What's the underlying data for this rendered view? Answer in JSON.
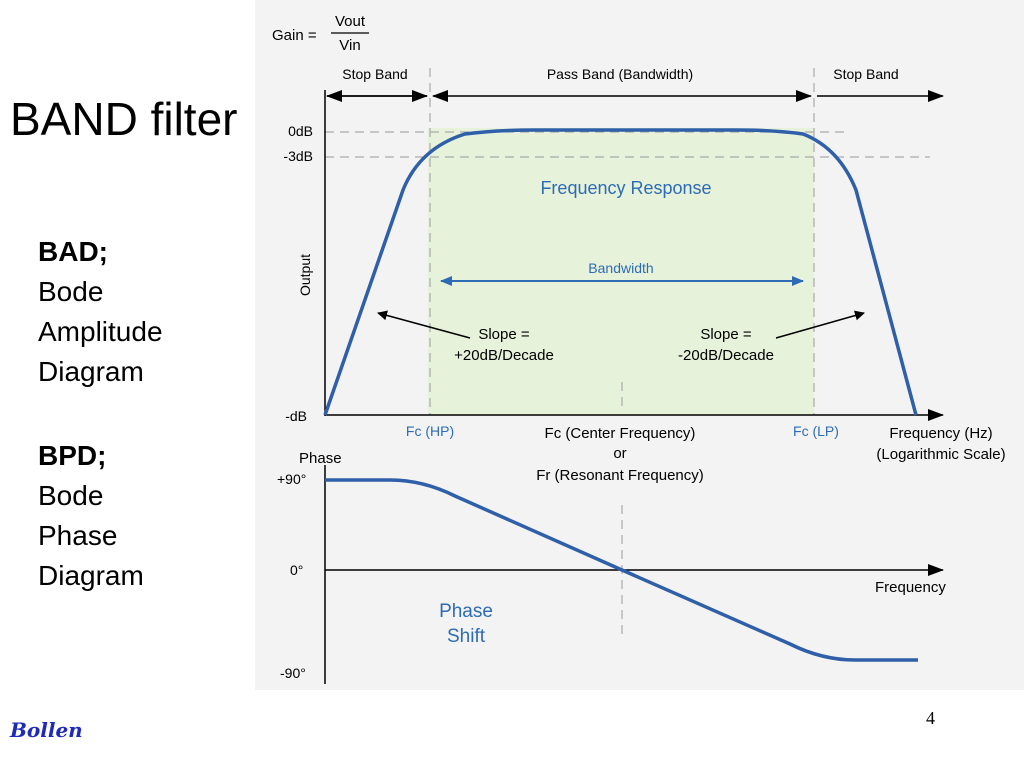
{
  "slide": {
    "title": "BAND filter",
    "bad_heading": "BAD;",
    "bad_lines": [
      "Bode",
      "Amplitude",
      "Diagram"
    ],
    "bpd_heading": "BPD;",
    "bpd_lines": [
      "Bode",
      "Phase",
      "Diagram"
    ],
    "author": "Bollen",
    "page_number": "4"
  },
  "diagram": {
    "gain_label": "Gain =",
    "gain_numerator": "Vout",
    "gain_denominator": "Vin",
    "stop_band_left": "Stop Band",
    "pass_band": "Pass Band (Bandwidth)",
    "stop_band_right": "Stop Band",
    "tick_0db": "0dB",
    "tick_3db": "-3dB",
    "tick_minus_db": "-dB",
    "output_axis": "Output",
    "frequency_response": "Frequency Response",
    "bandwidth": "Bandwidth",
    "slope_left_1": "Slope =",
    "slope_left_2": "+20dB/Decade",
    "slope_right_1": "Slope =",
    "slope_right_2": "-20dB/Decade",
    "fc_hp": "Fc (HP)",
    "fc_center": "Fc (Center Frequency)",
    "or": "or",
    "fr_resonant": "Fr (Resonant Frequency)",
    "fc_lp": "Fc (LP)",
    "freq_axis_1": "Frequency (Hz)",
    "freq_axis_2": "(Logarithmic Scale)",
    "phase_axis": "Phase",
    "phase_plus90": "+90°",
    "phase_zero": "0°",
    "phase_minus90": "-90°",
    "frequency": "Frequency",
    "phase_shift_1": "Phase",
    "phase_shift_2": "Shift",
    "colors": {
      "curve": "#2e5fa8",
      "label_blue": "#2e6bb5",
      "passband_fill": "#e6f2da",
      "dashed": "#aaaaaa",
      "background": "#f3f3f3"
    }
  }
}
